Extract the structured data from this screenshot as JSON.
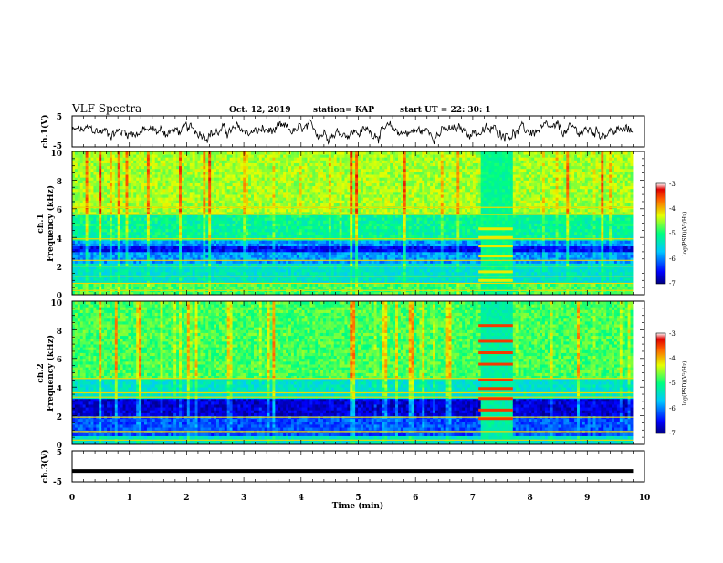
{
  "header": {
    "title": "VLF Spectra",
    "date": "Oct. 12, 2019",
    "station": "station= KAP",
    "start": "start  UT =   22: 30: 1"
  },
  "chart_data": {
    "type": "heatmap",
    "title": "VLF Spectra",
    "xlabel": "Time  (min)",
    "xlim": [
      0,
      10
    ],
    "x_ticks": [
      "0",
      "1",
      "2",
      "3",
      "4",
      "5",
      "6",
      "7",
      "8",
      "9",
      "10"
    ],
    "panels": [
      {
        "name": "ch1-voltage",
        "type": "line",
        "ylabel": "ch.1(V)",
        "ylim": [
          -5,
          5
        ],
        "y_ticks": [
          "5",
          "-5"
        ],
        "data_end_min": 9.8
      },
      {
        "name": "ch1-spectrogram",
        "type": "heatmap",
        "ylabel_line1": "ch.1",
        "ylabel_line2": "Frequency  (kHz)",
        "ylim": [
          0,
          10
        ],
        "y_ticks": [
          "0",
          "2",
          "4",
          "6",
          "8",
          "10"
        ],
        "data_end_min": 9.8,
        "interval_min": [
          7.1,
          7.7
        ],
        "colorbar": {
          "label": "log(PSD)(V²/Hz)",
          "range": [
            -7,
            -3
          ],
          "ticks": [
            "-3",
            "-4",
            "-5",
            "-6",
            "-7"
          ]
        }
      },
      {
        "name": "ch2-spectrogram",
        "type": "heatmap",
        "ylabel_line1": "ch.2",
        "ylabel_line2": "Frequency  (kHz)",
        "ylim": [
          0,
          10
        ],
        "y_ticks": [
          "0",
          "2",
          "4",
          "6",
          "8",
          "10"
        ],
        "data_end_min": 9.8,
        "interval_min": [
          7.1,
          7.7
        ],
        "colorbar": {
          "label": "log(PSD)(V²/Hz)",
          "range": [
            -7,
            -3
          ],
          "ticks": [
            "-3",
            "-4",
            "-5",
            "-6",
            "-7"
          ]
        }
      },
      {
        "name": "ch3-voltage",
        "type": "line",
        "ylabel": "ch.3(V)",
        "ylim": [
          -5,
          5
        ],
        "y_ticks": [
          "5",
          "-5"
        ],
        "level_v": -1.5,
        "data_end_min": 9.8
      }
    ]
  }
}
